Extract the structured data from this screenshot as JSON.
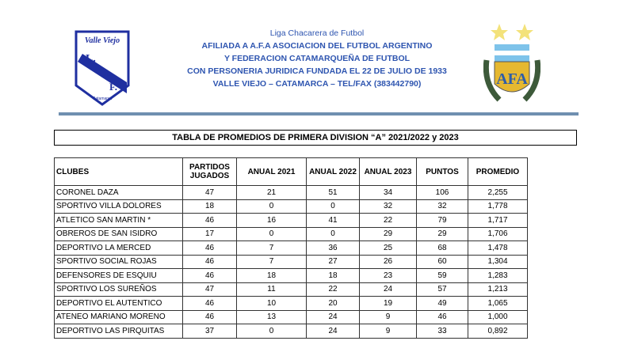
{
  "header": {
    "lines": [
      "Liga Chacarera de Futbol",
      "AFILIADA A A.F.A ASOCIACION DEL FUTBOL ARGENTINO",
      "Y FEDERACION CATAMARQUEÑA DE FUTBOL",
      "CON PERSONERIA JURIDICA FUNDADA EL 22 DE JULIO DE 1933",
      "VALLE VIEJO – CATAMARCA – TEL/FAX (383442790)"
    ],
    "logo_left": {
      "top": "Valle Viejo",
      "letters": "L.Ch.F.",
      "bottom": "Catamarca"
    },
    "logo_right": {
      "letters": "AFA"
    }
  },
  "title": "TABLA DE PROMEDIOS DE PRIMERA DIVISION “A” 2021/2022 y 2023",
  "table": {
    "columns": [
      "CLUBES",
      "PARTIDOS JUGADOS",
      "ANUAL 2021",
      "ANUAL 2022",
      "ANUAL 2023",
      "PUNTOS",
      "PROMEDIO"
    ],
    "rows": [
      [
        "CORONEL DAZA",
        "47",
        "21",
        "51",
        "34",
        "106",
        "2,255"
      ],
      [
        "SPORTIVO VILLA DOLORES",
        "18",
        "0",
        "0",
        "32",
        "32",
        "1,778"
      ],
      [
        "ATLETICO SAN MARTIN *",
        "46",
        "16",
        "41",
        "22",
        "79",
        "1,717"
      ],
      [
        "OBREROS DE SAN ISIDRO",
        "17",
        "0",
        "0",
        "29",
        "29",
        "1,706"
      ],
      [
        "DEPORTIVO LA MERCED",
        "46",
        "7",
        "36",
        "25",
        "68",
        "1,478"
      ],
      [
        "SPORTIVO SOCIAL ROJAS",
        "46",
        "7",
        "27",
        "26",
        "60",
        "1,304"
      ],
      [
        "DEFENSORES DE ESQUIU",
        "46",
        "18",
        "18",
        "23",
        "59",
        "1,283"
      ],
      [
        "SPORTIVO LOS SUREÑOS",
        "47",
        "11",
        "22",
        "24",
        "57",
        "1,213"
      ],
      [
        "DEPORTIVO EL AUTENTICO",
        "46",
        "10",
        "20",
        "19",
        "49",
        "1,065"
      ],
      [
        "ATENEO MARIANO MORENO",
        "46",
        "13",
        "24",
        "9",
        "46",
        "1,000"
      ],
      [
        "DEPORTIVO LAS PIRQUITAS",
        "37",
        "0",
        "24",
        "9",
        "33",
        "0,892"
      ]
    ]
  }
}
